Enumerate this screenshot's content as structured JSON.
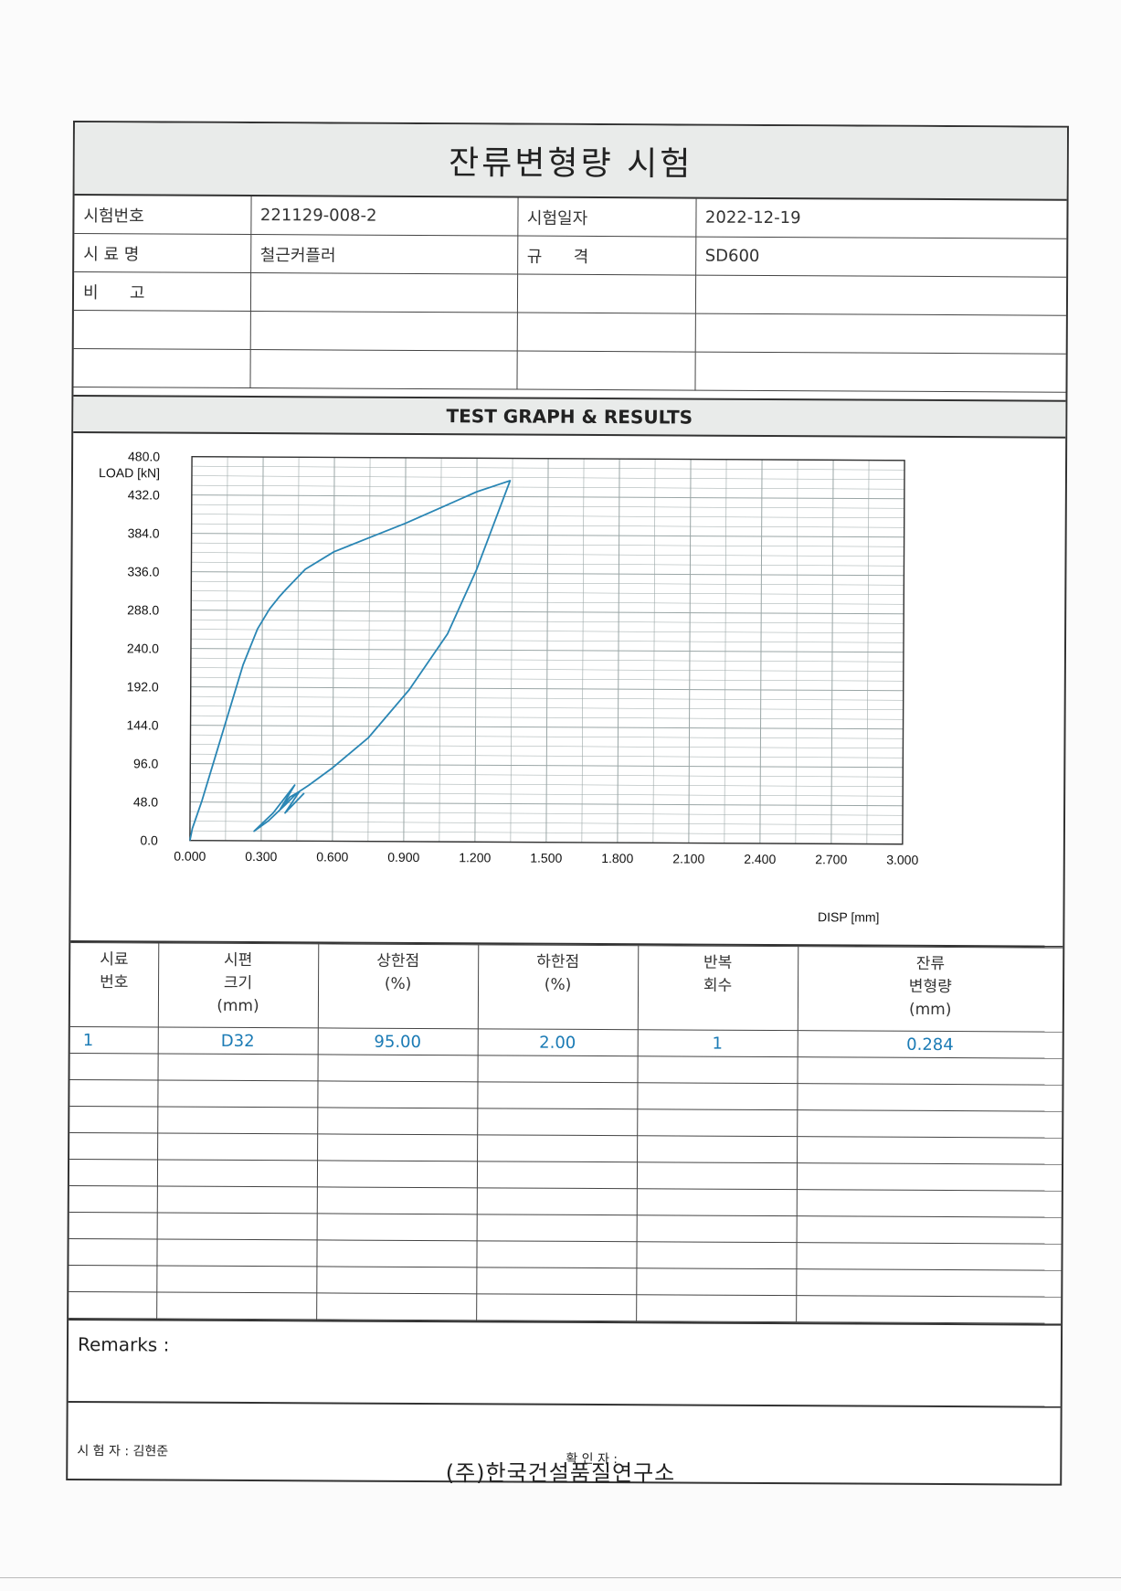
{
  "title": "잔류변형량 시험",
  "info": {
    "test_no_label": "시험번호",
    "test_no": "221129-008-2",
    "test_date_label": "시험일자",
    "test_date": "2022-12-19",
    "sample_label": "시 료 명",
    "sample": "철근커플러",
    "spec_label": "규      격",
    "spec": "SD600",
    "remark_label": "비      고"
  },
  "graph_heading": "TEST GRAPH & RESULTS",
  "chart_data": {
    "type": "line",
    "ylabel": "LOAD [kN]",
    "xlabel": "DISP [mm]",
    "xlim": [
      0.0,
      3.0
    ],
    "ylim": [
      0.0,
      480.0
    ],
    "x_ticks": [
      "0.000",
      "0.300",
      "0.600",
      "0.900",
      "1.200",
      "1.500",
      "1.800",
      "2.100",
      "2.400",
      "2.700",
      "3.000"
    ],
    "y_ticks": [
      "0.0",
      "48.0",
      "96.0",
      "144.0",
      "192.0",
      "240.0",
      "288.0",
      "336.0",
      "384.0",
      "432.0",
      "480.0"
    ],
    "grid": true,
    "line_color": "#2a86b4",
    "series": [
      {
        "x": [
          0.0,
          0.01,
          0.05,
          0.1,
          0.16,
          0.22,
          0.28,
          0.33,
          0.37,
          0.4,
          0.48,
          0.6,
          0.75,
          0.9,
          1.05,
          1.2,
          1.3,
          1.34,
          1.3,
          1.2,
          1.08,
          0.92,
          0.75,
          0.6,
          0.5,
          0.45,
          0.4,
          0.33,
          0.27,
          0.35,
          0.44,
          0.38,
          0.42,
          0.46,
          0.4,
          0.48
        ],
        "y": [
          0.0,
          15.0,
          50.0,
          100.0,
          160.0,
          220.0,
          265.0,
          290.0,
          305.0,
          315.0,
          340.0,
          362.0,
          380.0,
          398.0,
          418.0,
          438.0,
          448.0,
          452.0,
          420.0,
          340.0,
          260.0,
          190.0,
          130.0,
          92.0,
          70.0,
          60.0,
          45.0,
          25.0,
          12.0,
          35.0,
          70.0,
          40.0,
          55.0,
          62.0,
          35.0,
          60.0
        ]
      }
    ]
  },
  "results": {
    "headers": [
      [
        "시료",
        "번호"
      ],
      [
        "시편",
        "크기",
        "(mm)"
      ],
      [
        "상한점",
        "(%)"
      ],
      [
        "하한점",
        "(%)"
      ],
      [
        "반복",
        "회수"
      ],
      [
        "잔류",
        "변형량",
        "(mm)"
      ]
    ],
    "rows": [
      [
        "1",
        "D32",
        "95.00",
        "2.00",
        "1",
        "0.284"
      ]
    ],
    "empty_rows": 10
  },
  "remarks_label": "Remarks :",
  "tester": "시 험 자 : 김현준",
  "confirmer": "확 인 자 :",
  "footer": "(주)한국건설품질연구소"
}
